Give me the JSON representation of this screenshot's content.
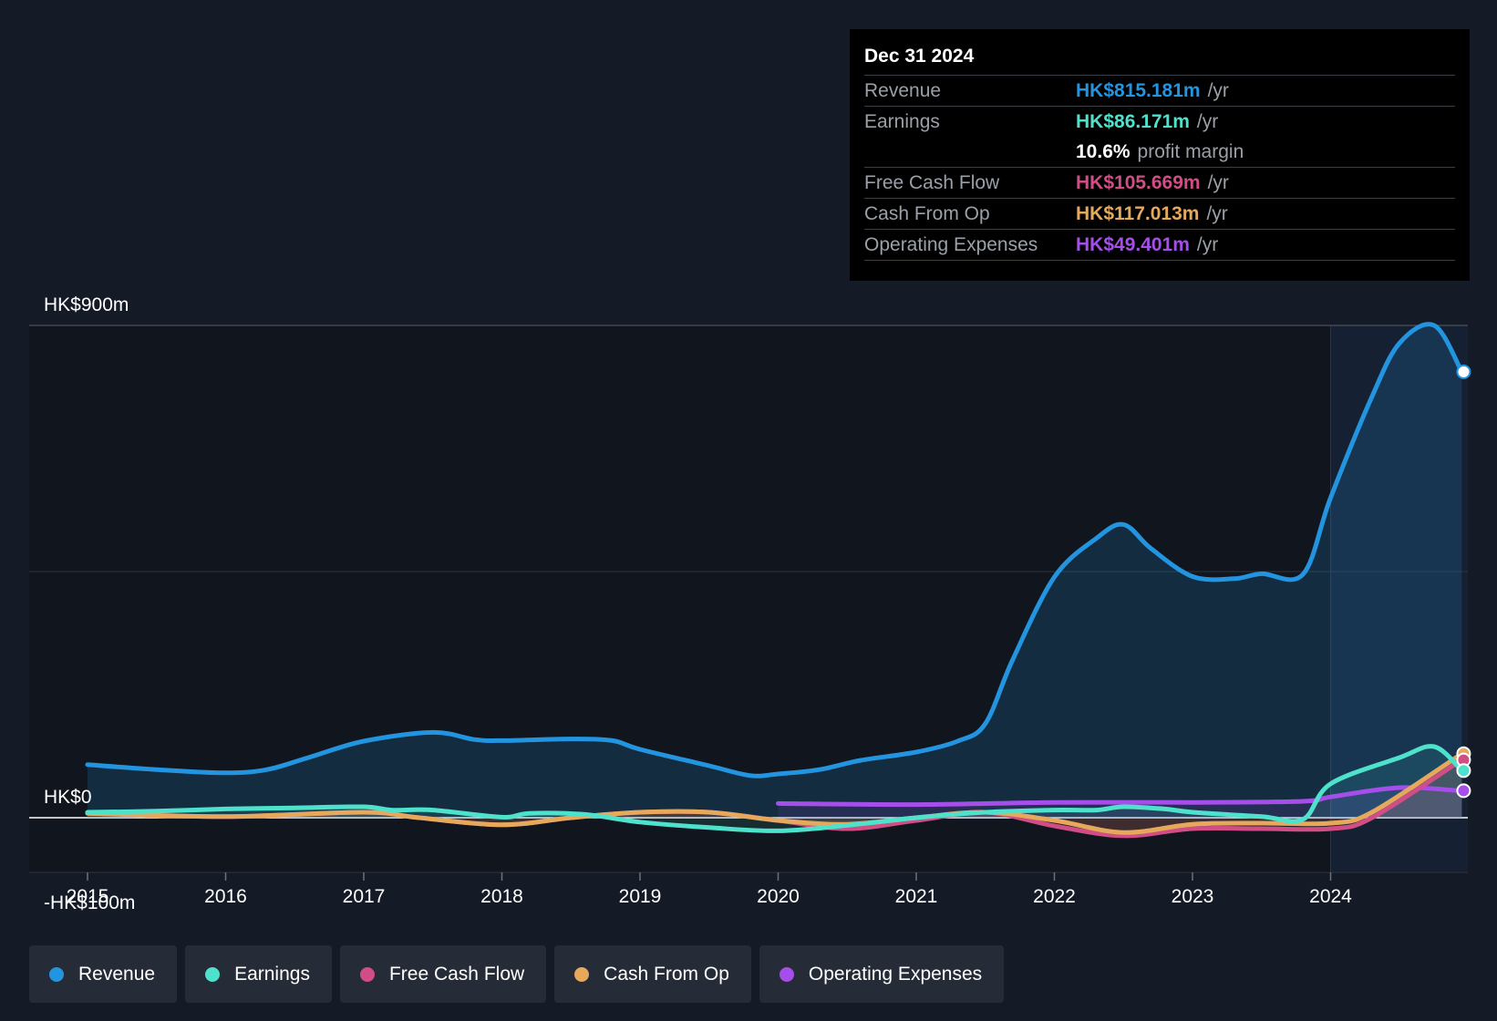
{
  "chart_data": {
    "type": "line",
    "y_labels": [
      "HK$900m",
      "HK$0",
      "-HK$100m"
    ],
    "ylim": [
      -100,
      900
    ],
    "xlim": [
      2014.6,
      2025.0
    ],
    "x_ticks": [
      "2015",
      "2016",
      "2017",
      "2018",
      "2019",
      "2020",
      "2021",
      "2022",
      "2023",
      "2024"
    ],
    "grid": true,
    "highlight_start": 2024.0,
    "series": [
      {
        "name": "Revenue",
        "color": "#2394df",
        "fill": true,
        "points": [
          [
            2015.0,
            97
          ],
          [
            2015.5,
            88
          ],
          [
            2016.0,
            82
          ],
          [
            2016.3,
            88
          ],
          [
            2016.6,
            110
          ],
          [
            2017.0,
            140
          ],
          [
            2017.5,
            156
          ],
          [
            2017.8,
            143
          ],
          [
            2018.0,
            141
          ],
          [
            2018.5,
            144
          ],
          [
            2018.8,
            141
          ],
          [
            2019.0,
            125
          ],
          [
            2019.5,
            95
          ],
          [
            2019.8,
            77
          ],
          [
            2020.0,
            80
          ],
          [
            2020.3,
            88
          ],
          [
            2020.6,
            105
          ],
          [
            2021.0,
            120
          ],
          [
            2021.3,
            140
          ],
          [
            2021.5,
            172
          ],
          [
            2021.7,
            290
          ],
          [
            2022.0,
            440
          ],
          [
            2022.3,
            510
          ],
          [
            2022.5,
            536
          ],
          [
            2022.7,
            492
          ],
          [
            2023.0,
            441
          ],
          [
            2023.3,
            437
          ],
          [
            2023.5,
            446
          ],
          [
            2023.8,
            445
          ],
          [
            2024.0,
            585
          ],
          [
            2024.3,
            770
          ],
          [
            2024.5,
            868
          ],
          [
            2024.75,
            900
          ],
          [
            2024.95,
            815
          ]
        ]
      },
      {
        "name": "Earnings",
        "color": "#4ee2cc",
        "fill": true,
        "points": [
          [
            2015.0,
            10
          ],
          [
            2015.5,
            12
          ],
          [
            2016.0,
            16
          ],
          [
            2016.5,
            18
          ],
          [
            2017.0,
            20
          ],
          [
            2017.2,
            14
          ],
          [
            2017.5,
            14
          ],
          [
            2018.0,
            1
          ],
          [
            2018.2,
            8
          ],
          [
            2018.6,
            6
          ],
          [
            2019.0,
            -8
          ],
          [
            2019.5,
            -18
          ],
          [
            2020.0,
            -24
          ],
          [
            2020.5,
            -14
          ],
          [
            2021.0,
            0
          ],
          [
            2021.5,
            10
          ],
          [
            2022.0,
            14
          ],
          [
            2022.3,
            14
          ],
          [
            2022.5,
            20
          ],
          [
            2022.8,
            16
          ],
          [
            2023.0,
            10
          ],
          [
            2023.5,
            2
          ],
          [
            2023.8,
            -3
          ],
          [
            2024.0,
            62
          ],
          [
            2024.5,
            110
          ],
          [
            2024.75,
            130
          ],
          [
            2024.95,
            86
          ]
        ]
      },
      {
        "name": "Free Cash Flow",
        "color": "#d04d85",
        "fill": true,
        "points": [
          [
            2015.0,
            8
          ],
          [
            2016.0,
            2
          ],
          [
            2017.0,
            10
          ],
          [
            2017.4,
            0
          ],
          [
            2018.0,
            -13
          ],
          [
            2018.5,
            0
          ],
          [
            2019.0,
            10
          ],
          [
            2019.5,
            10
          ],
          [
            2020.0,
            -5
          ],
          [
            2020.5,
            -20
          ],
          [
            2021.0,
            -5
          ],
          [
            2021.5,
            10
          ],
          [
            2022.0,
            -15
          ],
          [
            2022.5,
            -33
          ],
          [
            2023.0,
            -20
          ],
          [
            2023.5,
            -20
          ],
          [
            2024.0,
            -20
          ],
          [
            2024.3,
            0
          ],
          [
            2024.95,
            106
          ]
        ]
      },
      {
        "name": "Cash From Op",
        "color": "#e6a95c",
        "fill": true,
        "points": [
          [
            2015.0,
            8
          ],
          [
            2016.0,
            2
          ],
          [
            2017.0,
            10
          ],
          [
            2017.4,
            0
          ],
          [
            2018.0,
            -13
          ],
          [
            2018.5,
            0
          ],
          [
            2019.0,
            10
          ],
          [
            2019.5,
            10
          ],
          [
            2020.0,
            -5
          ],
          [
            2020.5,
            -12
          ],
          [
            2021.0,
            0
          ],
          [
            2021.5,
            10
          ],
          [
            2022.0,
            -5
          ],
          [
            2022.5,
            -27
          ],
          [
            2023.0,
            -12
          ],
          [
            2023.5,
            -10
          ],
          [
            2024.0,
            -10
          ],
          [
            2024.3,
            10
          ],
          [
            2024.95,
            117
          ]
        ]
      },
      {
        "name": "Operating Expenses",
        "color": "#a54ee9",
        "fill": true,
        "points": [
          [
            2020.0,
            26
          ],
          [
            2021.0,
            24
          ],
          [
            2022.0,
            28
          ],
          [
            2023.0,
            28
          ],
          [
            2023.8,
            30
          ],
          [
            2024.0,
            38
          ],
          [
            2024.5,
            55
          ],
          [
            2024.95,
            49
          ]
        ]
      }
    ],
    "end_markers": [
      {
        "series": "Revenue",
        "value": 815.181
      },
      {
        "series": "Cash From Op",
        "value": 117.013
      },
      {
        "series": "Free Cash Flow",
        "value": 105.669
      },
      {
        "series": "Earnings",
        "value": 86.171
      },
      {
        "series": "Operating Expenses",
        "value": 49.401
      }
    ]
  },
  "tooltip": {
    "date": "Dec 31 2024",
    "rows": [
      {
        "label": "Revenue",
        "value": "HK$815.181m",
        "unit": "/yr",
        "color": "#2394df"
      },
      {
        "label": "Earnings",
        "value": "HK$86.171m",
        "unit": "/yr",
        "color": "#4ee2cc"
      },
      {
        "label": "",
        "value": "10.6%",
        "unit": "profit margin",
        "color": "#ffffff"
      },
      {
        "label": "Free Cash Flow",
        "value": "HK$105.669m",
        "unit": "/yr",
        "color": "#d04d85"
      },
      {
        "label": "Cash From Op",
        "value": "HK$117.013m",
        "unit": "/yr",
        "color": "#e6a95c"
      },
      {
        "label": "Operating Expenses",
        "value": "HK$49.401m",
        "unit": "/yr",
        "color": "#a54ee9"
      }
    ]
  },
  "legend": [
    {
      "label": "Revenue",
      "color": "#2394df"
    },
    {
      "label": "Earnings",
      "color": "#4ee2cc"
    },
    {
      "label": "Free Cash Flow",
      "color": "#d04d85"
    },
    {
      "label": "Cash From Op",
      "color": "#e6a95c"
    },
    {
      "label": "Operating Expenses",
      "color": "#a54ee9"
    }
  ]
}
